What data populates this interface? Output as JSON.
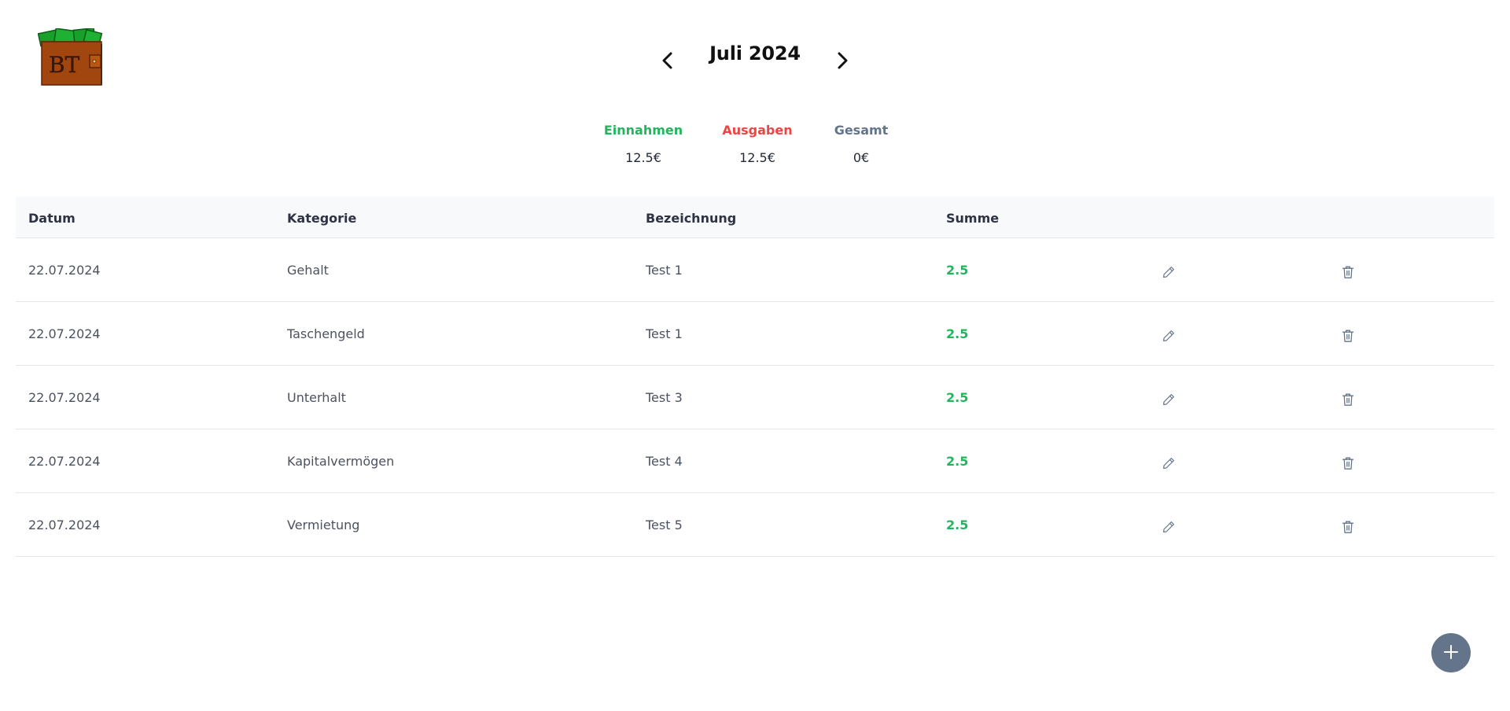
{
  "logo": {
    "text": "BT"
  },
  "header": {
    "month_label": "Juli 2024",
    "prev_icon": "chevron-left-icon",
    "next_icon": "chevron-right-icon"
  },
  "summary": {
    "income": {
      "label": "Einnahmen",
      "value": "12.5€"
    },
    "expense": {
      "label": "Ausgaben",
      "value": "12.5€"
    },
    "total": {
      "label": "Gesamt",
      "value": "0€"
    }
  },
  "colors": {
    "income": "#22b55e",
    "expense": "#ef4444",
    "total": "#64748b",
    "fab": "#64748b"
  },
  "table": {
    "columns": [
      "Datum",
      "Kategorie",
      "Bezeichnung",
      "Summe"
    ],
    "rows": [
      {
        "date": "22.07.2024",
        "category": "Gehalt",
        "description": "Test 1",
        "sum": "2.5"
      },
      {
        "date": "22.07.2024",
        "category": "Taschengeld",
        "description": "Test 1",
        "sum": "2.5"
      },
      {
        "date": "22.07.2024",
        "category": "Unterhalt",
        "description": "Test 3",
        "sum": "2.5"
      },
      {
        "date": "22.07.2024",
        "category": "Kapitalvermögen",
        "description": "Test 4",
        "sum": "2.5"
      },
      {
        "date": "22.07.2024",
        "category": "Vermietung",
        "description": "Test 5",
        "sum": "2.5"
      }
    ],
    "edit_icon": "pencil-icon",
    "delete_icon": "trash-icon"
  },
  "fab": {
    "icon": "plus-icon"
  }
}
